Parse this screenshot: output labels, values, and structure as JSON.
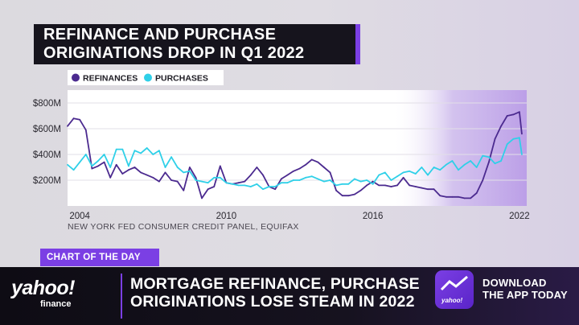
{
  "headline_box": {
    "line1": "REFINANCE AND PURCHASE",
    "line2": "ORIGINATIONS DROP IN Q1 2022"
  },
  "source": "NEW YORK FED CONSUMER CREDIT PANEL, EQUIFAX",
  "segment_tag": "CHART OF THE DAY",
  "lower_third": {
    "line1": "MORTGAGE REFINANCE, PURCHASE",
    "line2": "ORIGINATIONS LOSE STEAM IN 2022"
  },
  "brand": {
    "name": "yahoo!",
    "sub": "finance",
    "app_icon_label": "yahoo!"
  },
  "cta": {
    "line1": "DOWNLOAD",
    "line2": "THE APP TODAY"
  },
  "colors": {
    "refinances": "#4b2a8f",
    "purchases": "#2fd0e8",
    "accent": "#7b3fe4"
  },
  "chart_data": {
    "type": "line",
    "title": "REFINANCE AND PURCHASE ORIGINATIONS DROP IN Q1 2022",
    "xlabel": "",
    "ylabel": "",
    "ylim": [
      0,
      900
    ],
    "xlim": [
      2003.5,
      2022.3
    ],
    "yticks": [
      200,
      400,
      600,
      800
    ],
    "ytick_labels": [
      "$200M",
      "$400M",
      "$600M",
      "$800M"
    ],
    "xticks": [
      2004,
      2010,
      2016,
      2022
    ],
    "legend_position": "top-left",
    "shaded_region": [
      2016.8,
      2022.3
    ],
    "series": [
      {
        "name": "REFINANCES",
        "x": [
          2003.5,
          2003.75,
          2004,
          2004.25,
          2004.5,
          2004.75,
          2005,
          2005.25,
          2005.5,
          2005.75,
          2006,
          2006.25,
          2006.5,
          2006.75,
          2007,
          2007.25,
          2007.5,
          2007.75,
          2008,
          2008.25,
          2008.5,
          2008.75,
          2009,
          2009.25,
          2009.5,
          2009.75,
          2010,
          2010.25,
          2010.5,
          2010.75,
          2011,
          2011.25,
          2011.5,
          2011.75,
          2012,
          2012.25,
          2012.5,
          2012.75,
          2013,
          2013.25,
          2013.5,
          2013.75,
          2014,
          2014.25,
          2014.5,
          2014.75,
          2015,
          2015.25,
          2015.5,
          2015.75,
          2016,
          2016.25,
          2016.5,
          2016.75,
          2017,
          2017.25,
          2017.5,
          2017.75,
          2018,
          2018.25,
          2018.5,
          2018.75,
          2019,
          2019.25,
          2019.5,
          2019.75,
          2020,
          2020.25,
          2020.5,
          2020.75,
          2021,
          2021.25,
          2021.5,
          2021.75,
          2022,
          2022.1
        ],
        "values": [
          620,
          680,
          670,
          590,
          290,
          310,
          340,
          220,
          320,
          250,
          280,
          300,
          260,
          240,
          220,
          190,
          260,
          200,
          190,
          120,
          300,
          220,
          60,
          130,
          150,
          310,
          180,
          170,
          180,
          190,
          240,
          300,
          240,
          150,
          130,
          210,
          240,
          270,
          290,
          320,
          360,
          340,
          300,
          260,
          120,
          80,
          80,
          90,
          120,
          160,
          190,
          160,
          160,
          150,
          160,
          220,
          160,
          150,
          140,
          130,
          130,
          80,
          70,
          70,
          70,
          60,
          60,
          100,
          200,
          340,
          520,
          620,
          700,
          710,
          730,
          560
        ]
      },
      {
        "name": "PURCHASES",
        "x": [
          2003.5,
          2003.75,
          2004,
          2004.25,
          2004.5,
          2004.75,
          2005,
          2005.25,
          2005.5,
          2005.75,
          2006,
          2006.25,
          2006.5,
          2006.75,
          2007,
          2007.25,
          2007.5,
          2007.75,
          2008,
          2008.25,
          2008.5,
          2008.75,
          2009,
          2009.25,
          2009.5,
          2009.75,
          2010,
          2010.25,
          2010.5,
          2010.75,
          2011,
          2011.25,
          2011.5,
          2011.75,
          2012,
          2012.25,
          2012.5,
          2012.75,
          2013,
          2013.25,
          2013.5,
          2013.75,
          2014,
          2014.25,
          2014.5,
          2014.75,
          2015,
          2015.25,
          2015.5,
          2015.75,
          2016,
          2016.25,
          2016.5,
          2016.75,
          2017,
          2017.25,
          2017.5,
          2017.75,
          2018,
          2018.25,
          2018.5,
          2018.75,
          2019,
          2019.25,
          2019.5,
          2019.75,
          2020,
          2020.25,
          2020.5,
          2020.75,
          2021,
          2021.25,
          2021.5,
          2021.75,
          2022,
          2022.1
        ],
        "values": [
          320,
          280,
          340,
          400,
          310,
          350,
          400,
          300,
          440,
          440,
          310,
          430,
          410,
          450,
          400,
          430,
          300,
          380,
          300,
          260,
          270,
          200,
          190,
          180,
          220,
          220,
          180,
          170,
          160,
          160,
          150,
          170,
          130,
          150,
          150,
          180,
          180,
          200,
          200,
          220,
          230,
          210,
          190,
          200,
          160,
          170,
          170,
          210,
          190,
          200,
          170,
          240,
          260,
          200,
          230,
          260,
          270,
          250,
          300,
          240,
          300,
          280,
          320,
          350,
          280,
          320,
          350,
          300,
          390,
          380,
          330,
          350,
          480,
          520,
          530,
          400
        ]
      }
    ]
  }
}
